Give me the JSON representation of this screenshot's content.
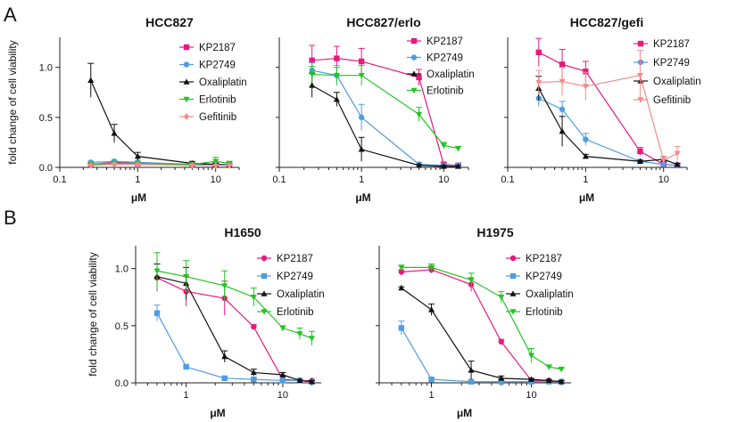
{
  "panel_labels": [
    "A",
    "B"
  ],
  "chart_data": [
    {
      "type": "line",
      "title": "HCC827",
      "xlabel": "μM",
      "ylabel": "fold change of cell viability",
      "xscale": "log",
      "xlim": [
        0.1,
        20
      ],
      "ylim": [
        0,
        1.3
      ],
      "xticks": [
        0.1,
        1,
        10
      ],
      "xtick_labels": [
        "0.1",
        "1",
        "10"
      ],
      "yticks": [
        0,
        0.5,
        1.0
      ],
      "ytick_labels": [
        "0.0",
        "0.5",
        "1.0"
      ],
      "legend_position": "right",
      "series": [
        {
          "name": "KP2187",
          "color": "#e8197d",
          "marker": "square",
          "x": [
            0.25,
            0.5,
            1,
            5,
            10,
            15
          ],
          "y": [
            0.03,
            0.05,
            0.04,
            0.03,
            0.03,
            0.03
          ],
          "err": [
            0.01,
            0.01,
            0.01,
            0.01,
            0.01,
            0.01
          ]
        },
        {
          "name": "KP2749",
          "color": "#4f9de0",
          "marker": "circle",
          "x": [
            0.25,
            0.5,
            1,
            5,
            10,
            15
          ],
          "y": [
            0.05,
            0.06,
            0.05,
            0.03,
            0.03,
            0.03
          ],
          "err": [
            0.01,
            0.01,
            0.01,
            0.01,
            0.01,
            0.01
          ]
        },
        {
          "name": "Oxaliplatin",
          "color": "#111111",
          "marker": "triangle-up",
          "x": [
            0.25,
            0.5,
            1,
            5,
            10,
            15
          ],
          "y": [
            0.87,
            0.34,
            0.11,
            0.04,
            0.03,
            0.02
          ],
          "err": [
            0.17,
            0.09,
            0.04,
            0.02,
            0.01,
            0.01
          ]
        },
        {
          "name": "Erlotinib",
          "color": "#22c422",
          "marker": "triangle-down",
          "x": [
            0.25,
            0.5,
            1,
            5,
            10,
            15
          ],
          "y": [
            0.03,
            0.04,
            0.04,
            0.03,
            0.06,
            0.04
          ],
          "err": [
            0.01,
            0.01,
            0.01,
            0.01,
            0.04,
            0.02
          ]
        },
        {
          "name": "Gefitinib",
          "color": "#f28b8b",
          "marker": "diamond",
          "x": [
            0.25,
            0.5,
            1,
            5,
            10,
            15
          ],
          "y": [
            0.02,
            0.03,
            0.03,
            0.02,
            0.02,
            0.02
          ],
          "err": [
            0.01,
            0.01,
            0.01,
            0.01,
            0.01,
            0.01
          ]
        }
      ]
    },
    {
      "type": "line",
      "title": "HCC827/erlo",
      "xlabel": "μM",
      "ylabel": "",
      "xscale": "log",
      "xlim": [
        0.1,
        20
      ],
      "ylim": [
        0,
        1.3
      ],
      "xticks": [
        0.1,
        1,
        10
      ],
      "xtick_labels": [
        "0.1",
        "1",
        "10"
      ],
      "yticks": [],
      "ytick_labels": [],
      "legend_position": "right",
      "series": [
        {
          "name": "KP2187",
          "color": "#e8197d",
          "marker": "square",
          "x": [
            0.25,
            0.5,
            1,
            5,
            10,
            15
          ],
          "y": [
            1.07,
            1.09,
            1.06,
            0.9,
            0.03,
            0.02
          ],
          "err": [
            0.15,
            0.12,
            0.13,
            0.08,
            0.02,
            0.01
          ]
        },
        {
          "name": "KP2749",
          "color": "#4f9de0",
          "marker": "circle",
          "x": [
            0.25,
            0.5,
            1,
            5,
            10,
            15
          ],
          "y": [
            0.97,
            0.92,
            0.5,
            0.03,
            0.02,
            0.02
          ],
          "err": [
            0.08,
            0.1,
            0.13,
            0.02,
            0.01,
            0.01
          ]
        },
        {
          "name": "Oxaliplatin",
          "color": "#111111",
          "marker": "triangle-up",
          "x": [
            0.25,
            0.5,
            1,
            5,
            10,
            15
          ],
          "y": [
            0.82,
            0.68,
            0.18,
            0.02,
            0.01,
            0.01
          ],
          "err": [
            0.12,
            0.07,
            0.12,
            0.01,
            0.01,
            0.01
          ]
        },
        {
          "name": "Erlotinib",
          "color": "#22c422",
          "marker": "triangle-down",
          "x": [
            0.25,
            0.5,
            1,
            5,
            10,
            15
          ],
          "y": [
            0.93,
            0.92,
            0.92,
            0.53,
            0.22,
            0.19
          ],
          "err": [
            0.08,
            0.08,
            0.1,
            0.07,
            0.03,
            0.02
          ]
        }
      ]
    },
    {
      "type": "line",
      "title": "HCC827/gefi",
      "xlabel": "μM",
      "ylabel": "",
      "xscale": "log",
      "xlim": [
        0.1,
        20
      ],
      "ylim": [
        0,
        1.3
      ],
      "xticks": [
        0.1,
        1,
        10
      ],
      "xtick_labels": [
        "0.1",
        "1",
        "10"
      ],
      "yticks": [],
      "ytick_labels": [],
      "legend_position": "right",
      "series": [
        {
          "name": "KP2187",
          "color": "#e8197d",
          "marker": "square",
          "x": [
            0.25,
            0.5,
            1,
            5,
            10,
            15
          ],
          "y": [
            1.15,
            1.03,
            0.96,
            0.16,
            0.03,
            0.02
          ],
          "err": [
            0.14,
            0.15,
            0.1,
            0.04,
            0.02,
            0.01
          ]
        },
        {
          "name": "KP2749",
          "color": "#4f9de0",
          "marker": "circle",
          "x": [
            0.25,
            0.5,
            1,
            5,
            10,
            15
          ],
          "y": [
            0.69,
            0.58,
            0.28,
            0.06,
            0.03,
            0.02
          ],
          "err": [
            0.08,
            0.08,
            0.06,
            0.02,
            0.01,
            0.01
          ]
        },
        {
          "name": "Oxaliplatin",
          "color": "#111111",
          "marker": "triangle-up",
          "x": [
            0.25,
            0.5,
            1,
            5,
            10,
            15
          ],
          "y": [
            0.79,
            0.36,
            0.11,
            0.06,
            0.08,
            0.03
          ],
          "err": [
            0.12,
            0.15,
            0.02,
            0.01,
            0.03,
            0.01
          ]
        },
        {
          "name": "Gefitinib",
          "color": "#f28b8b",
          "marker": "triangle-down",
          "x": [
            0.25,
            0.5,
            1,
            5,
            10,
            15
          ],
          "y": [
            0.85,
            0.86,
            0.81,
            0.92,
            0.07,
            0.14
          ],
          "err": [
            0.12,
            0.14,
            0.14,
            0.25,
            0.04,
            0.07
          ]
        }
      ]
    },
    {
      "type": "line",
      "title": "H1650",
      "xlabel": "μM",
      "ylabel": "fold change of cell viability",
      "xscale": "log",
      "xlim": [
        0.3,
        25
      ],
      "ylim": [
        0,
        1.2
      ],
      "xticks": [
        1,
        10
      ],
      "xtick_labels": [
        "1",
        "10"
      ],
      "yticks": [
        0,
        0.5,
        1.0
      ],
      "ytick_labels": [
        "0.0",
        "0.5",
        "1.0"
      ],
      "legend_position": "right",
      "series": [
        {
          "name": "KP2187",
          "color": "#e8197d",
          "marker": "circle",
          "x": [
            0.5,
            1,
            2.5,
            5,
            10,
            15,
            20
          ],
          "y": [
            0.92,
            0.8,
            0.74,
            0.49,
            0.03,
            0.02,
            0.02
          ],
          "err": [
            0.12,
            0.13,
            0.15,
            0.02,
            0.03,
            0.01,
            0.01
          ]
        },
        {
          "name": "KP2749",
          "color": "#4f9de0",
          "marker": "square",
          "x": [
            0.5,
            1,
            2.5,
            5,
            10,
            15,
            20
          ],
          "y": [
            0.61,
            0.14,
            0.04,
            0.03,
            0.02,
            0.02,
            0.01
          ],
          "err": [
            0.07,
            0.01,
            0.01,
            0.01,
            0.01,
            0.01,
            0.01
          ]
        },
        {
          "name": "Oxaliplatin",
          "color": "#111111",
          "marker": "triangle-up",
          "x": [
            0.5,
            1,
            2.5,
            5,
            10,
            15,
            20
          ],
          "y": [
            0.93,
            0.87,
            0.23,
            0.09,
            0.07,
            0.02,
            0.01
          ],
          "err": [
            0.11,
            0.14,
            0.05,
            0.03,
            0.02,
            0.01,
            0.01
          ]
        },
        {
          "name": "Erlotinib",
          "color": "#22c422",
          "marker": "triangle-down",
          "x": [
            0.5,
            1,
            2.5,
            5,
            10,
            15,
            20
          ],
          "y": [
            0.98,
            0.93,
            0.85,
            0.75,
            0.48,
            0.43,
            0.39
          ],
          "err": [
            0.16,
            0.14,
            0.13,
            0.08,
            0.02,
            0.05,
            0.06
          ]
        }
      ]
    },
    {
      "type": "line",
      "title": "H1975",
      "xlabel": "μM",
      "ylabel": "",
      "xscale": "log",
      "xlim": [
        0.3,
        25
      ],
      "ylim": [
        0,
        1.2
      ],
      "xticks": [
        1,
        10
      ],
      "xtick_labels": [
        "1",
        "10"
      ],
      "yticks": [],
      "ytick_labels": [],
      "legend_position": "right",
      "series": [
        {
          "name": "KP2187",
          "color": "#e8197d",
          "marker": "circle",
          "x": [
            0.5,
            1,
            2.5,
            5,
            10,
            15,
            20
          ],
          "y": [
            0.97,
            0.99,
            0.86,
            0.36,
            0.02,
            0.02,
            0.01
          ],
          "err": [
            0.02,
            0.03,
            0.06,
            0.02,
            0.01,
            0.01,
            0.01
          ]
        },
        {
          "name": "KP2749",
          "color": "#4f9de0",
          "marker": "square",
          "x": [
            0.5,
            1,
            2.5,
            5,
            10,
            15,
            20
          ],
          "y": [
            0.48,
            0.03,
            0.01,
            0.01,
            0.01,
            0.01,
            0.01
          ],
          "err": [
            0.06,
            0.01,
            0.01,
            0.01,
            0.01,
            0.01,
            0.01
          ]
        },
        {
          "name": "Oxaliplatin",
          "color": "#111111",
          "marker": "triangle-up",
          "x": [
            0.5,
            1,
            2.5,
            5,
            10,
            15,
            20
          ],
          "y": [
            0.83,
            0.64,
            0.11,
            0.04,
            0.03,
            0.02,
            0.01
          ],
          "err": [
            0.01,
            0.05,
            0.08,
            0.02,
            0.01,
            0.01,
            0.01
          ]
        },
        {
          "name": "Erlotinib",
          "color": "#22c422",
          "marker": "triangle-down",
          "x": [
            0.5,
            1,
            2.5,
            5,
            10,
            15,
            20
          ],
          "y": [
            1.01,
            1.01,
            0.9,
            0.75,
            0.24,
            0.14,
            0.12
          ],
          "err": [
            0.02,
            0.03,
            0.06,
            0.05,
            0.06,
            0.01,
            0.01
          ]
        }
      ]
    }
  ]
}
